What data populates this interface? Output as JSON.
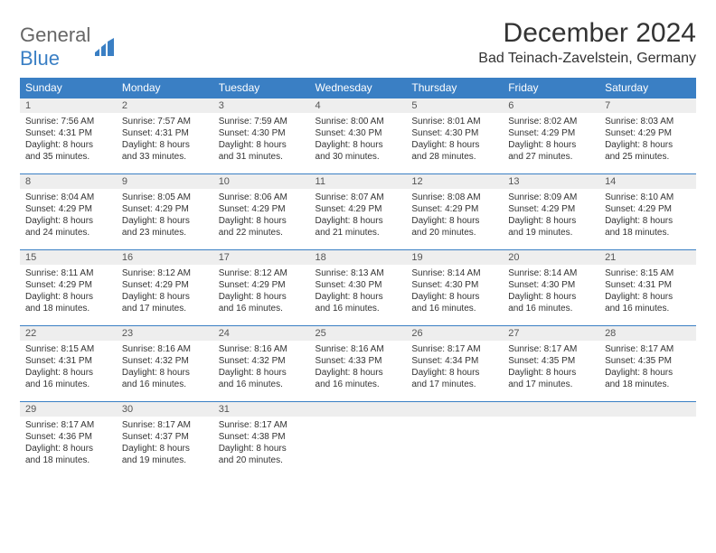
{
  "brand": {
    "part1": "General",
    "part2": "Blue"
  },
  "title": "December 2024",
  "location": "Bad Teinach-Zavelstein, Germany",
  "colors": {
    "header_bg": "#3a7fc4",
    "header_text": "#ffffff",
    "daynum_bg": "#eeeeee",
    "border": "#3a7fc4",
    "text": "#333333"
  },
  "day_headers": [
    "Sunday",
    "Monday",
    "Tuesday",
    "Wednesday",
    "Thursday",
    "Friday",
    "Saturday"
  ],
  "weeks": [
    [
      {
        "n": "1",
        "sr": "Sunrise: 7:56 AM",
        "ss": "Sunset: 4:31 PM",
        "d1": "Daylight: 8 hours",
        "d2": "and 35 minutes."
      },
      {
        "n": "2",
        "sr": "Sunrise: 7:57 AM",
        "ss": "Sunset: 4:31 PM",
        "d1": "Daylight: 8 hours",
        "d2": "and 33 minutes."
      },
      {
        "n": "3",
        "sr": "Sunrise: 7:59 AM",
        "ss": "Sunset: 4:30 PM",
        "d1": "Daylight: 8 hours",
        "d2": "and 31 minutes."
      },
      {
        "n": "4",
        "sr": "Sunrise: 8:00 AM",
        "ss": "Sunset: 4:30 PM",
        "d1": "Daylight: 8 hours",
        "d2": "and 30 minutes."
      },
      {
        "n": "5",
        "sr": "Sunrise: 8:01 AM",
        "ss": "Sunset: 4:30 PM",
        "d1": "Daylight: 8 hours",
        "d2": "and 28 minutes."
      },
      {
        "n": "6",
        "sr": "Sunrise: 8:02 AM",
        "ss": "Sunset: 4:29 PM",
        "d1": "Daylight: 8 hours",
        "d2": "and 27 minutes."
      },
      {
        "n": "7",
        "sr": "Sunrise: 8:03 AM",
        "ss": "Sunset: 4:29 PM",
        "d1": "Daylight: 8 hours",
        "d2": "and 25 minutes."
      }
    ],
    [
      {
        "n": "8",
        "sr": "Sunrise: 8:04 AM",
        "ss": "Sunset: 4:29 PM",
        "d1": "Daylight: 8 hours",
        "d2": "and 24 minutes."
      },
      {
        "n": "9",
        "sr": "Sunrise: 8:05 AM",
        "ss": "Sunset: 4:29 PM",
        "d1": "Daylight: 8 hours",
        "d2": "and 23 minutes."
      },
      {
        "n": "10",
        "sr": "Sunrise: 8:06 AM",
        "ss": "Sunset: 4:29 PM",
        "d1": "Daylight: 8 hours",
        "d2": "and 22 minutes."
      },
      {
        "n": "11",
        "sr": "Sunrise: 8:07 AM",
        "ss": "Sunset: 4:29 PM",
        "d1": "Daylight: 8 hours",
        "d2": "and 21 minutes."
      },
      {
        "n": "12",
        "sr": "Sunrise: 8:08 AM",
        "ss": "Sunset: 4:29 PM",
        "d1": "Daylight: 8 hours",
        "d2": "and 20 minutes."
      },
      {
        "n": "13",
        "sr": "Sunrise: 8:09 AM",
        "ss": "Sunset: 4:29 PM",
        "d1": "Daylight: 8 hours",
        "d2": "and 19 minutes."
      },
      {
        "n": "14",
        "sr": "Sunrise: 8:10 AM",
        "ss": "Sunset: 4:29 PM",
        "d1": "Daylight: 8 hours",
        "d2": "and 18 minutes."
      }
    ],
    [
      {
        "n": "15",
        "sr": "Sunrise: 8:11 AM",
        "ss": "Sunset: 4:29 PM",
        "d1": "Daylight: 8 hours",
        "d2": "and 18 minutes."
      },
      {
        "n": "16",
        "sr": "Sunrise: 8:12 AM",
        "ss": "Sunset: 4:29 PM",
        "d1": "Daylight: 8 hours",
        "d2": "and 17 minutes."
      },
      {
        "n": "17",
        "sr": "Sunrise: 8:12 AM",
        "ss": "Sunset: 4:29 PM",
        "d1": "Daylight: 8 hours",
        "d2": "and 16 minutes."
      },
      {
        "n": "18",
        "sr": "Sunrise: 8:13 AM",
        "ss": "Sunset: 4:30 PM",
        "d1": "Daylight: 8 hours",
        "d2": "and 16 minutes."
      },
      {
        "n": "19",
        "sr": "Sunrise: 8:14 AM",
        "ss": "Sunset: 4:30 PM",
        "d1": "Daylight: 8 hours",
        "d2": "and 16 minutes."
      },
      {
        "n": "20",
        "sr": "Sunrise: 8:14 AM",
        "ss": "Sunset: 4:30 PM",
        "d1": "Daylight: 8 hours",
        "d2": "and 16 minutes."
      },
      {
        "n": "21",
        "sr": "Sunrise: 8:15 AM",
        "ss": "Sunset: 4:31 PM",
        "d1": "Daylight: 8 hours",
        "d2": "and 16 minutes."
      }
    ],
    [
      {
        "n": "22",
        "sr": "Sunrise: 8:15 AM",
        "ss": "Sunset: 4:31 PM",
        "d1": "Daylight: 8 hours",
        "d2": "and 16 minutes."
      },
      {
        "n": "23",
        "sr": "Sunrise: 8:16 AM",
        "ss": "Sunset: 4:32 PM",
        "d1": "Daylight: 8 hours",
        "d2": "and 16 minutes."
      },
      {
        "n": "24",
        "sr": "Sunrise: 8:16 AM",
        "ss": "Sunset: 4:32 PM",
        "d1": "Daylight: 8 hours",
        "d2": "and 16 minutes."
      },
      {
        "n": "25",
        "sr": "Sunrise: 8:16 AM",
        "ss": "Sunset: 4:33 PM",
        "d1": "Daylight: 8 hours",
        "d2": "and 16 minutes."
      },
      {
        "n": "26",
        "sr": "Sunrise: 8:17 AM",
        "ss": "Sunset: 4:34 PM",
        "d1": "Daylight: 8 hours",
        "d2": "and 17 minutes."
      },
      {
        "n": "27",
        "sr": "Sunrise: 8:17 AM",
        "ss": "Sunset: 4:35 PM",
        "d1": "Daylight: 8 hours",
        "d2": "and 17 minutes."
      },
      {
        "n": "28",
        "sr": "Sunrise: 8:17 AM",
        "ss": "Sunset: 4:35 PM",
        "d1": "Daylight: 8 hours",
        "d2": "and 18 minutes."
      }
    ],
    [
      {
        "n": "29",
        "sr": "Sunrise: 8:17 AM",
        "ss": "Sunset: 4:36 PM",
        "d1": "Daylight: 8 hours",
        "d2": "and 18 minutes."
      },
      {
        "n": "30",
        "sr": "Sunrise: 8:17 AM",
        "ss": "Sunset: 4:37 PM",
        "d1": "Daylight: 8 hours",
        "d2": "and 19 minutes."
      },
      {
        "n": "31",
        "sr": "Sunrise: 8:17 AM",
        "ss": "Sunset: 4:38 PM",
        "d1": "Daylight: 8 hours",
        "d2": "and 20 minutes."
      },
      {
        "n": "",
        "empty": true
      },
      {
        "n": "",
        "empty": true
      },
      {
        "n": "",
        "empty": true
      },
      {
        "n": "",
        "empty": true
      }
    ]
  ]
}
